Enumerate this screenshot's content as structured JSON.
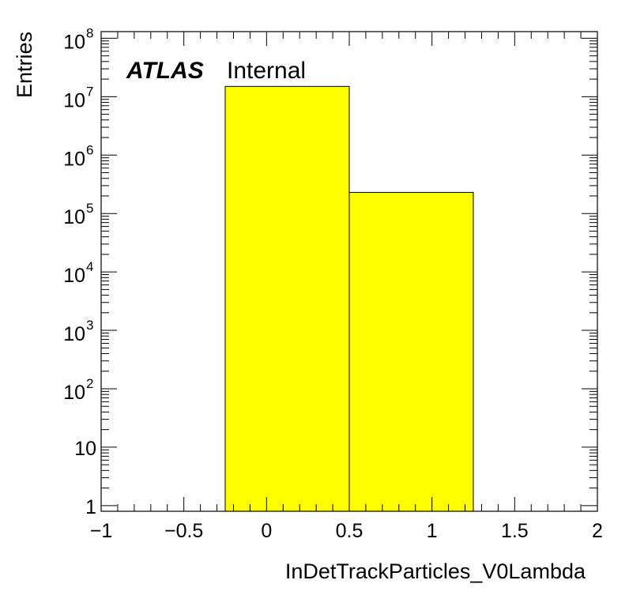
{
  "chart_data": {
    "type": "bar",
    "subtype": "histogram",
    "bin_edges": [
      -0.25,
      0.5,
      1.25
    ],
    "values": [
      15000000,
      230000
    ],
    "fill_color": "#ffff00",
    "edge_color": "#000000",
    "xlabel": "InDetTrackParticles_V0Lambda",
    "ylabel": "Entries",
    "xlim": [
      -1,
      2
    ],
    "ylim": [
      0.8,
      130000000
    ],
    "yscale": "log",
    "grid": false,
    "xticks": [
      -1,
      -0.5,
      0,
      0.5,
      1,
      1.5,
      2
    ],
    "xtick_labels": [
      "−1",
      "−0.5",
      "0",
      "0.5",
      "1",
      "1.5",
      "2"
    ],
    "yticks": [
      {
        "value": 1,
        "label": "1",
        "sup": ""
      },
      {
        "value": 10,
        "label": "10",
        "sup": ""
      },
      {
        "value": 100,
        "label": "10",
        "sup": "2"
      },
      {
        "value": 1000,
        "label": "10",
        "sup": "3"
      },
      {
        "value": 10000,
        "label": "10",
        "sup": "4"
      },
      {
        "value": 100000,
        "label": "10",
        "sup": "5"
      },
      {
        "value": 1000000,
        "label": "10",
        "sup": "6"
      },
      {
        "value": 10000000,
        "label": "10",
        "sup": "7"
      },
      {
        "value": 100000000,
        "label": "10",
        "sup": "8"
      }
    ],
    "annotation": {
      "bold": "ATLAS",
      "text": "Internal"
    }
  }
}
